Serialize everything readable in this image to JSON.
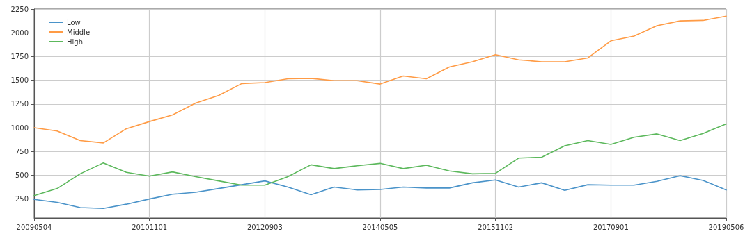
{
  "chart_data": {
    "type": "line",
    "categories": [
      "20090504",
      null,
      null,
      null,
      null,
      "20101101",
      null,
      null,
      null,
      null,
      "20120903",
      null,
      null,
      null,
      null,
      "20140505",
      null,
      null,
      null,
      null,
      "20151102",
      null,
      null,
      null,
      null,
      "20170901",
      null,
      null,
      null,
      null,
      "20190506"
    ],
    "series": [
      {
        "name": "Low",
        "color": "#4a93c9",
        "values": [
          245,
          215,
          160,
          150,
          195,
          250,
          300,
          320,
          360,
          400,
          440,
          375,
          295,
          375,
          345,
          350,
          375,
          365,
          365,
          420,
          450,
          375,
          420,
          340,
          400,
          395,
          395,
          435,
          495,
          445,
          345
        ]
      },
      {
        "name": "Middle",
        "color": "#ff9b45",
        "values": [
          1000,
          965,
          865,
          840,
          990,
          1065,
          1135,
          1260,
          1340,
          1465,
          1475,
          1515,
          1520,
          1495,
          1495,
          1460,
          1545,
          1515,
          1640,
          1695,
          1770,
          1715,
          1695,
          1695,
          1735,
          1915,
          1965,
          2075,
          2125,
          2130,
          2175
        ]
      },
      {
        "name": "High",
        "color": "#5cb85c",
        "values": [
          285,
          360,
          515,
          630,
          530,
          490,
          535,
          485,
          440,
          395,
          395,
          485,
          610,
          570,
          600,
          625,
          570,
          605,
          545,
          515,
          520,
          680,
          690,
          810,
          865,
          825,
          900,
          935,
          865,
          940,
          1040
        ]
      }
    ],
    "ylim": [
      50,
      2250
    ],
    "yticks": [
      250,
      500,
      750,
      1000,
      1250,
      1500,
      1750,
      2000,
      2250
    ],
    "grid": true,
    "legend": "top left",
    "marker": "none",
    "line_style": "solid"
  }
}
